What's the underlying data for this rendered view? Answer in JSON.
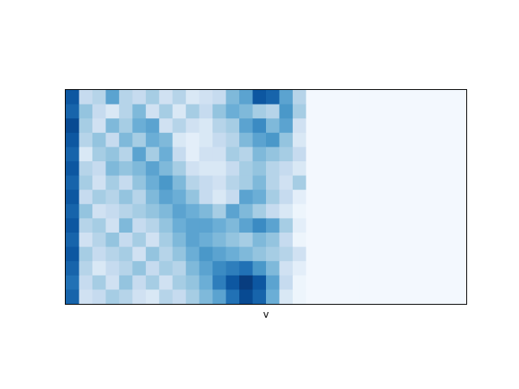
{
  "chart_data": {
    "type": "heatmap",
    "title": "",
    "xlabel": "v",
    "ylabel": "",
    "colormap": "Blues",
    "colormap_stops": [
      "#f7fbff",
      "#deebf7",
      "#c6dbef",
      "#9ecae1",
      "#6baed6",
      "#4292c6",
      "#2171b5",
      "#08519c",
      "#08306b"
    ],
    "xticks": [],
    "yticks": [],
    "grid": false,
    "z": [
      [
        0.85,
        0.25,
        0.3,
        0.55,
        0.3,
        0.25,
        0.35,
        0.2,
        0.3,
        0.15,
        0.2,
        0.25,
        0.45,
        0.55,
        0.85,
        0.8,
        0.55,
        0.3,
        0.02,
        0.02,
        0.02,
        0.02,
        0.02,
        0.02,
        0.02,
        0.02,
        0.02,
        0.02,
        0.02,
        0.02
      ],
      [
        0.8,
        0.4,
        0.25,
        0.15,
        0.3,
        0.45,
        0.2,
        0.35,
        0.15,
        0.35,
        0.25,
        0.4,
        0.5,
        0.45,
        0.35,
        0.3,
        0.6,
        0.35,
        0.02,
        0.02,
        0.02,
        0.02,
        0.02,
        0.02,
        0.02,
        0.02,
        0.02,
        0.02,
        0.02,
        0.02
      ],
      [
        0.9,
        0.35,
        0.2,
        0.45,
        0.35,
        0.5,
        0.55,
        0.2,
        0.3,
        0.2,
        0.15,
        0.3,
        0.35,
        0.55,
        0.65,
        0.45,
        0.55,
        0.2,
        0.02,
        0.02,
        0.02,
        0.02,
        0.02,
        0.02,
        0.02,
        0.02,
        0.02,
        0.02,
        0.02,
        0.02
      ],
      [
        0.85,
        0.3,
        0.4,
        0.25,
        0.45,
        0.35,
        0.5,
        0.45,
        0.15,
        0.1,
        0.15,
        0.25,
        0.3,
        0.45,
        0.55,
        0.6,
        0.4,
        0.15,
        0.02,
        0.02,
        0.02,
        0.02,
        0.02,
        0.02,
        0.02,
        0.02,
        0.02,
        0.02,
        0.02,
        0.02
      ],
      [
        0.8,
        0.15,
        0.35,
        0.4,
        0.3,
        0.55,
        0.35,
        0.5,
        0.25,
        0.1,
        0.2,
        0.2,
        0.35,
        0.3,
        0.45,
        0.4,
        0.35,
        0.25,
        0.02,
        0.02,
        0.02,
        0.02,
        0.02,
        0.02,
        0.02,
        0.02,
        0.02,
        0.02,
        0.02,
        0.02
      ],
      [
        0.85,
        0.3,
        0.25,
        0.45,
        0.4,
        0.45,
        0.55,
        0.45,
        0.35,
        0.2,
        0.15,
        0.15,
        0.25,
        0.35,
        0.4,
        0.3,
        0.25,
        0.15,
        0.02,
        0.02,
        0.02,
        0.02,
        0.02,
        0.02,
        0.02,
        0.02,
        0.02,
        0.02,
        0.02,
        0.02
      ],
      [
        0.8,
        0.35,
        0.2,
        0.35,
        0.25,
        0.4,
        0.5,
        0.6,
        0.45,
        0.3,
        0.25,
        0.2,
        0.3,
        0.35,
        0.45,
        0.3,
        0.2,
        0.35,
        0.02,
        0.02,
        0.02,
        0.02,
        0.02,
        0.02,
        0.02,
        0.02,
        0.02,
        0.02,
        0.02,
        0.02
      ],
      [
        0.85,
        0.25,
        0.35,
        0.3,
        0.4,
        0.3,
        0.45,
        0.55,
        0.5,
        0.4,
        0.25,
        0.15,
        0.25,
        0.55,
        0.5,
        0.35,
        0.25,
        0.1,
        0.02,
        0.02,
        0.02,
        0.02,
        0.02,
        0.02,
        0.02,
        0.02,
        0.02,
        0.02,
        0.02,
        0.02
      ],
      [
        0.8,
        0.4,
        0.2,
        0.25,
        0.3,
        0.35,
        0.4,
        0.45,
        0.55,
        0.5,
        0.45,
        0.35,
        0.55,
        0.45,
        0.35,
        0.25,
        0.15,
        0.05,
        0.02,
        0.02,
        0.02,
        0.02,
        0.02,
        0.02,
        0.02,
        0.02,
        0.02,
        0.02,
        0.02,
        0.02
      ],
      [
        0.85,
        0.3,
        0.35,
        0.2,
        0.45,
        0.25,
        0.3,
        0.4,
        0.5,
        0.55,
        0.55,
        0.5,
        0.45,
        0.55,
        0.65,
        0.55,
        0.35,
        0.1,
        0.02,
        0.02,
        0.02,
        0.02,
        0.02,
        0.02,
        0.02,
        0.02,
        0.02,
        0.02,
        0.02,
        0.02
      ],
      [
        0.8,
        0.2,
        0.3,
        0.4,
        0.25,
        0.35,
        0.2,
        0.35,
        0.45,
        0.55,
        0.5,
        0.45,
        0.4,
        0.35,
        0.45,
        0.4,
        0.25,
        0.05,
        0.02,
        0.02,
        0.02,
        0.02,
        0.02,
        0.02,
        0.02,
        0.02,
        0.02,
        0.02,
        0.02,
        0.02
      ],
      [
        0.85,
        0.35,
        0.25,
        0.3,
        0.35,
        0.2,
        0.4,
        0.3,
        0.4,
        0.5,
        0.6,
        0.55,
        0.5,
        0.45,
        0.4,
        0.35,
        0.3,
        0.2,
        0.02,
        0.02,
        0.02,
        0.02,
        0.02,
        0.02,
        0.02,
        0.02,
        0.02,
        0.02,
        0.02,
        0.02
      ],
      [
        0.8,
        0.3,
        0.15,
        0.25,
        0.3,
        0.4,
        0.25,
        0.35,
        0.3,
        0.45,
        0.55,
        0.65,
        0.7,
        0.75,
        0.6,
        0.45,
        0.2,
        0.1,
        0.02,
        0.02,
        0.02,
        0.02,
        0.02,
        0.02,
        0.02,
        0.02,
        0.02,
        0.02,
        0.02,
        0.02
      ],
      [
        0.75,
        0.25,
        0.35,
        0.2,
        0.4,
        0.25,
        0.35,
        0.2,
        0.35,
        0.4,
        0.5,
        0.7,
        0.85,
        0.95,
        0.85,
        0.55,
        0.25,
        0.05,
        0.02,
        0.02,
        0.02,
        0.02,
        0.02,
        0.02,
        0.02,
        0.02,
        0.02,
        0.02,
        0.02,
        0.02
      ],
      [
        0.8,
        0.2,
        0.25,
        0.35,
        0.3,
        0.2,
        0.15,
        0.3,
        0.25,
        0.35,
        0.45,
        0.55,
        0.75,
        0.9,
        0.8,
        0.5,
        0.15,
        0.05,
        0.02,
        0.02,
        0.02,
        0.02,
        0.02,
        0.02,
        0.02,
        0.02,
        0.02,
        0.02,
        0.02,
        0.02
      ]
    ]
  }
}
